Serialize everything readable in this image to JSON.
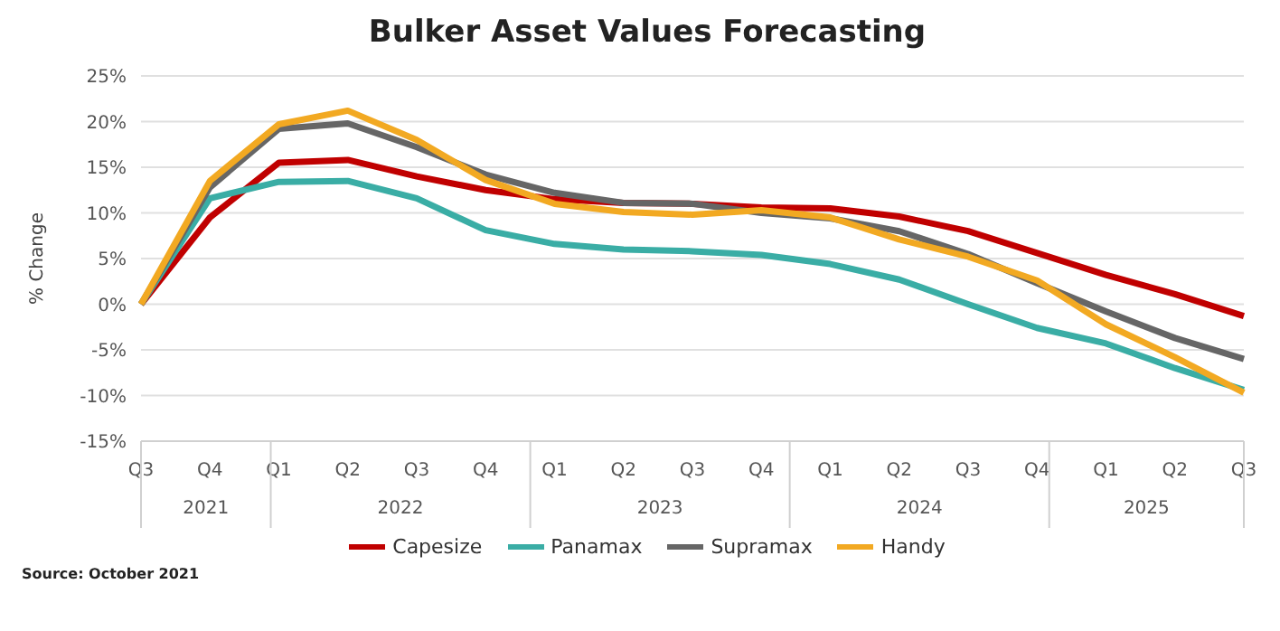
{
  "chart_data": {
    "type": "line",
    "title": "Bulker Asset Values Forecasting",
    "ylabel": "% Change",
    "categories": [
      "Q3",
      "Q4",
      "Q1",
      "Q2",
      "Q3",
      "Q4",
      "Q1",
      "Q2",
      "Q3",
      "Q4",
      "Q1",
      "Q2",
      "Q3",
      "Q4",
      "Q1",
      "Q2",
      "Q3"
    ],
    "series": [
      {
        "name": "Capesize",
        "color": "#c00000",
        "values": [
          0,
          9.5,
          15.5,
          15.8,
          14,
          12.5,
          11.5,
          11.1,
          11,
          10.6,
          10.5,
          9.6,
          8,
          5.6,
          3.2,
          1.1,
          -1.3
        ]
      },
      {
        "name": "Panamax",
        "color": "#3aada5",
        "values": [
          0,
          11.6,
          13.4,
          13.5,
          11.6,
          8.1,
          6.6,
          6,
          5.8,
          5.4,
          4.4,
          2.7,
          0,
          -2.6,
          -4.3,
          -7,
          -9.4
        ]
      },
      {
        "name": "Supramax",
        "color": "#666666",
        "values": [
          0,
          12.8,
          19.2,
          19.8,
          17.2,
          14.2,
          12.2,
          11.1,
          11,
          10,
          9.4,
          8,
          5.5,
          2.3,
          -0.8,
          -3.7,
          -6
        ]
      },
      {
        "name": "Handy",
        "color": "#f2a922",
        "values": [
          0,
          13.5,
          19.7,
          21.2,
          18,
          13.6,
          11,
          10.1,
          9.8,
          10.3,
          9.5,
          7.1,
          5.2,
          2.6,
          -2.2,
          -5.8,
          -9.7
        ]
      }
    ],
    "ylim": [
      -15,
      25
    ],
    "yticks": [
      {
        "value": -15,
        "label": "-15%"
      },
      {
        "value": -10,
        "label": "-10%"
      },
      {
        "value": -5,
        "label": "-5%"
      },
      {
        "value": 0,
        "label": "0%"
      },
      {
        "value": 5,
        "label": "5%"
      },
      {
        "value": 10,
        "label": "10%"
      },
      {
        "value": 15,
        "label": "15%"
      },
      {
        "value": 20,
        "label": "20%"
      },
      {
        "value": 25,
        "label": "25%"
      }
    ],
    "grid": "y",
    "legend": "bottom",
    "marker": "none",
    "line_style": "solid",
    "annotations": [
      "2021",
      "2022",
      "2023",
      "2024",
      "2025",
      "Source: October 2021"
    ]
  }
}
